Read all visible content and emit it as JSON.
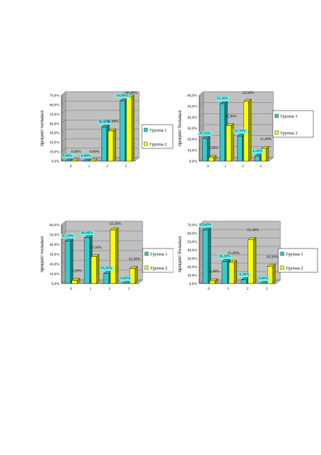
{
  "chart_data": [
    {
      "type": "bar",
      "categories": [
        "0",
        "1",
        "2",
        "3"
      ],
      "series": [
        {
          "name": "Группа 1",
          "values": [
            0.0,
            0.0,
            36.0,
            64.0
          ],
          "labels": [
            "0,00%",
            "0,00%",
            "36,00%",
            "64,00%"
          ]
        },
        {
          "name": "Группа 2",
          "values": [
            0.0,
            0.0,
            32.0,
            68.0
          ],
          "labels": [
            "0,00%",
            "0,00%",
            "32,00%",
            "68,00%"
          ]
        }
      ],
      "ylabel": "процент больных",
      "ylim": [
        0,
        70
      ],
      "yticks": [
        "0,0%",
        "10,0%",
        "20,0%",
        "30,0%",
        "40,0%",
        "50,0%",
        "60,0%",
        "70,0%"
      ],
      "grid": true,
      "legend": "right",
      "colors": [
        "#33cccc",
        "#ffff00"
      ]
    },
    {
      "type": "bar",
      "categories": [
        "0",
        "1",
        "2",
        "3"
      ],
      "series": [
        {
          "name": "Группа 1",
          "values": [
            20.5,
            52.3,
            22.7,
            4.5
          ],
          "labels": [
            "20,50%",
            "52,30%",
            "22,70%",
            "4,50%"
          ]
        },
        {
          "name": "Группа 2",
          "values": [
            3.2,
            32.3,
            54.5,
            11.4
          ],
          "labels": [
            "3,20%",
            "32,30%",
            "54,50%",
            "11,40%"
          ]
        }
      ],
      "ylabel": "процент больных",
      "ylim": [
        0,
        60
      ],
      "yticks": [
        "0,0%",
        "10,0%",
        "20,0%",
        "30,0%",
        "40,0%",
        "50,0%",
        "60,0%"
      ],
      "grid": true,
      "legend": "right",
      "colors": [
        "#33cccc",
        "#ffff00"
      ]
    },
    {
      "type": "bar",
      "categories": [
        "0",
        "1",
        "2",
        "3"
      ],
      "series": [
        {
          "name": "Группа 1",
          "values": [
            43.2,
            46.6,
            10.2,
            0.0
          ],
          "labels": [
            "43,20%",
            "46,60%",
            "10,20%",
            "0,00%"
          ]
        },
        {
          "name": "Группа 2",
          "values": [
            3.2,
            27.3,
            54.5,
            15.3
          ],
          "labels": [
            "3,20%",
            "27,30%",
            "54,50%",
            "15,30%"
          ]
        }
      ],
      "ylabel": "процент больных",
      "ylim": [
        0,
        60
      ],
      "yticks": [
        "0,0%",
        "10,0%",
        "20,0%",
        "30,0%",
        "40,0%",
        "50,0%",
        "60,0%"
      ],
      "grid": true,
      "legend": "right",
      "colors": [
        "#33cccc",
        "#ffff00"
      ]
    },
    {
      "type": "bar",
      "categories": [
        "0",
        "1",
        "2",
        "3"
      ],
      "series": [
        {
          "name": "Группа 1",
          "values": [
            63.6,
            26.2,
            4.5,
            0.0
          ],
          "labels": [
            "63,60%",
            "26,20%",
            "4,50%",
            "0,00%"
          ]
        },
        {
          "name": "Группа 2",
          "values": [
            3.2,
            25.0,
            52.3,
            20.5
          ],
          "labels": [
            "3,20%",
            "25,00%",
            "52,30%",
            "20,50%"
          ]
        }
      ],
      "ylabel": "процент больных",
      "ylim": [
        0,
        70
      ],
      "yticks": [
        "0,0%",
        "10,0%",
        "20,0%",
        "30,0%",
        "40,0%",
        "50,0%",
        "60,0%",
        "70,0%"
      ],
      "grid": true,
      "legend": "right",
      "colors": [
        "#33cccc",
        "#ffff00"
      ]
    }
  ]
}
